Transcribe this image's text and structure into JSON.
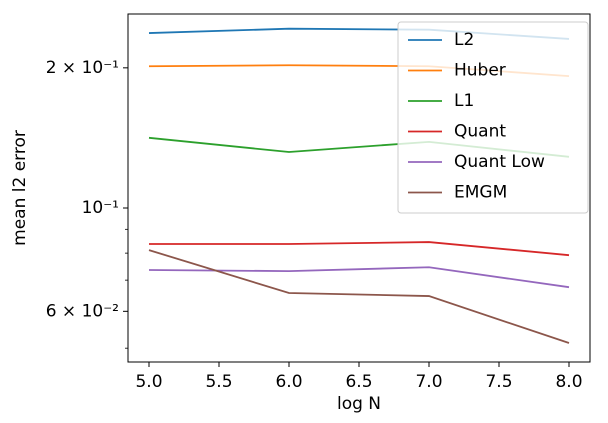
{
  "chart_data": {
    "type": "line",
    "xlabel": "log N",
    "ylabel": "mean l2 error",
    "x": [
      5,
      6,
      7,
      8
    ],
    "series": [
      {
        "name": "L2",
        "color": "#1f77b4",
        "values": [
          0.2375,
          0.2427,
          0.2415,
          0.2307
        ]
      },
      {
        "name": "Huber",
        "color": "#ff7f0e",
        "values": [
          0.2016,
          0.2026,
          0.2016,
          0.192
        ]
      },
      {
        "name": "L1",
        "color": "#2ca02c",
        "values": [
          0.1415,
          0.1319,
          0.1387,
          0.1288
        ]
      },
      {
        "name": "Quant",
        "color": "#d62728",
        "values": [
          0.0837,
          0.0837,
          0.0845,
          0.0792
        ]
      },
      {
        "name": "Quant Low",
        "color": "#9467bd",
        "values": [
          0.0736,
          0.0732,
          0.0746,
          0.0676
        ]
      },
      {
        "name": "EMGM",
        "color": "#8c564b",
        "values": [
          0.0812,
          0.0657,
          0.0647,
          0.0513
        ]
      }
    ],
    "xlim": [
      4.85,
      8.15
    ],
    "xticks": [
      {
        "value": 5,
        "label": "5.0"
      },
      {
        "value": 5.5,
        "label": "5.5"
      },
      {
        "value": 6,
        "label": "6.0"
      },
      {
        "value": 6.5,
        "label": "6.5"
      },
      {
        "value": 7,
        "label": "7.0"
      },
      {
        "value": 7.5,
        "label": "7.5"
      },
      {
        "value": 8,
        "label": "8.0"
      }
    ],
    "ylim": [
      0.0467,
      0.261
    ],
    "ylog": true,
    "yticks": [
      {
        "value": 0.2,
        "label": "2 × 10⁻¹"
      },
      {
        "value": 0.1,
        "label": "10⁻¹"
      },
      {
        "value": 0.06,
        "label": "6 × 10⁻²"
      }
    ],
    "yminorticks": [
      0.05,
      0.07,
      0.08,
      0.09
    ],
    "legend": "upper right"
  }
}
